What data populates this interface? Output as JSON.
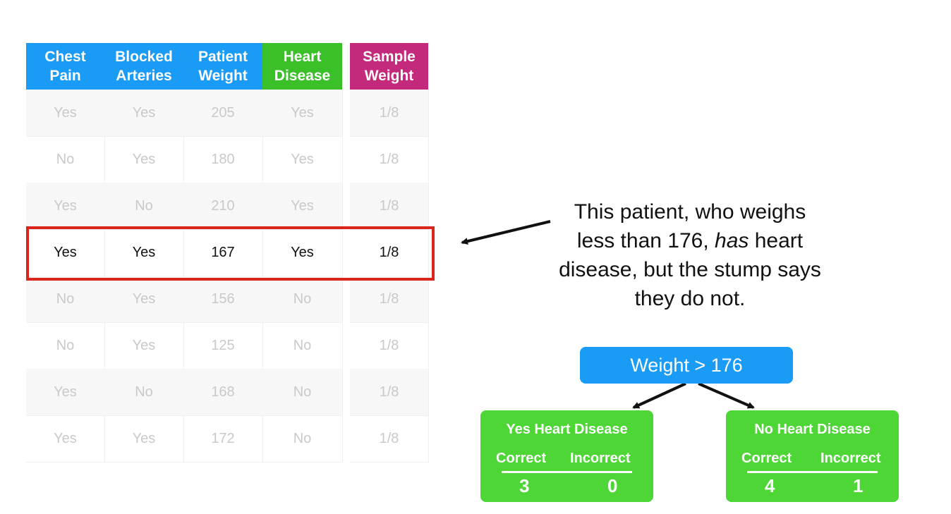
{
  "table": {
    "headers": [
      {
        "label": "Chest\nPain",
        "color": "#1a9bf5"
      },
      {
        "label": "Blocked\nArteries",
        "color": "#1a9bf5"
      },
      {
        "label": "Patient\nWeight",
        "color": "#1a9bf5"
      },
      {
        "label": "Heart\nDisease",
        "color": "#3cc02a"
      },
      {
        "label": "Sample\nWeight",
        "color": "#c32a7c"
      }
    ],
    "rows": [
      [
        "Yes",
        "Yes",
        "205",
        "Yes",
        "1/8"
      ],
      [
        "No",
        "Yes",
        "180",
        "Yes",
        "1/8"
      ],
      [
        "Yes",
        "No",
        "210",
        "Yes",
        "1/8"
      ],
      [
        "Yes",
        "Yes",
        "167",
        "Yes",
        "1/8"
      ],
      [
        "No",
        "Yes",
        "156",
        "No",
        "1/8"
      ],
      [
        "No",
        "Yes",
        "125",
        "No",
        "1/8"
      ],
      [
        "Yes",
        "No",
        "168",
        "No",
        "1/8"
      ],
      [
        "Yes",
        "Yes",
        "172",
        "No",
        "1/8"
      ]
    ],
    "highlighted_row": 3
  },
  "explanation": {
    "line1": "This patient, who weighs",
    "line2_pre": "less than 176, ",
    "line2_em": "has",
    "line2_post": " heart",
    "line3": "disease, but the stump says",
    "line4": "they do not."
  },
  "stump": {
    "root": "Weight > 176",
    "left": {
      "title": "Yes Heart Disease",
      "correct_label": "Correct",
      "incorrect_label": "Incorrect",
      "correct": "3",
      "incorrect": "0"
    },
    "right": {
      "title": "No Heart Disease",
      "correct_label": "Correct",
      "incorrect_label": "Incorrect",
      "correct": "4",
      "incorrect": "1"
    }
  },
  "colors": {
    "blue_header": "#1a9bf5",
    "green_header": "#3cc02a",
    "magenta_header": "#c32a7c",
    "highlight_border": "#d9261c",
    "leaf_green": "#4ed636"
  }
}
